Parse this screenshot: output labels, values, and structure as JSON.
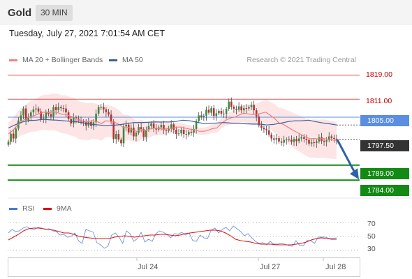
{
  "header": {
    "instrument": "Gold",
    "timeframe": "30 MIN"
  },
  "datetime": "Tuesday, July 27, 2021 7:01:54 AM CET",
  "legend": {
    "ma20_bb": "MA 20 + Bollinger Bands",
    "ma50": "MA 50",
    "credit": "Research © 2021 Trading Central",
    "rsi": "RSI",
    "rsi_ma": "9MA"
  },
  "colors": {
    "resistance": "#e03030",
    "support": "#138a13",
    "pivot": "#5b8de0",
    "current": "#333333",
    "ma20": "#f28080",
    "ma50": "#3a5fa0",
    "bollinger_fill": "#fde0e0",
    "arrow": "#2e62a6",
    "rsi": "#4a78d8",
    "rsi_ma": "#e01010"
  },
  "chart_data": {
    "type": "line",
    "title": "Gold 30 MIN",
    "price_axis": {
      "ylim": [
        1778,
        1822
      ],
      "levels": [
        {
          "value": 1819.0,
          "label": "1819.00",
          "kind": "resistance"
        },
        {
          "value": 1811.0,
          "label": "1811.00",
          "kind": "resistance"
        },
        {
          "value": 1805.0,
          "label": "1805.00",
          "kind": "pivot"
        },
        {
          "value": 1797.5,
          "label": "1797.50",
          "kind": "current"
        },
        {
          "value": 1789.0,
          "label": "1789.00",
          "kind": "support"
        },
        {
          "value": 1784.0,
          "label": "1784.00",
          "kind": "support"
        }
      ]
    },
    "x_ticks": [
      "Jul 24",
      "Jul 27",
      "Jul 28"
    ],
    "close_series": [
      1796.8,
      1799.5,
      1797.9,
      1801.2,
      1803.9,
      1805.6,
      1807.9,
      1804.0,
      1804.9,
      1806.6,
      1807.6,
      1807.9,
      1806.9,
      1804.4,
      1804.6,
      1806.8,
      1806.0,
      1805.2,
      1808.4,
      1807.4,
      1808.4,
      1808.0,
      1807.9,
      1806.6,
      1804.4,
      1802.9,
      1804.9,
      1804.5,
      1803.8,
      1803.6,
      1803.3,
      1802.2,
      1803.4,
      1802.1,
      1803.3,
      1806.2,
      1808.4,
      1808.4,
      1807.6,
      1806.7,
      1805.9,
      1803.6,
      1797.7,
      1799.4,
      1797.5,
      1796.3,
      1801.9,
      1802.5,
      1799.9,
      1801.5,
      1798.6,
      1799.8,
      1801.7,
      1801.0,
      1798.4,
      1800.8,
      1802.0,
      1802.9,
      1801.3,
      1800.9,
      1801.6,
      1802.4,
      1800.7,
      1800.5,
      1801.1,
      1802.6,
      1800.8,
      1799.4,
      1799.6,
      1800.8,
      1799.4,
      1799.2,
      1800.1,
      1799.8,
      1801.1,
      1803.7,
      1805.6,
      1805.1,
      1805.5,
      1807.5,
      1806.5,
      1808.0,
      1805.4,
      1806.3,
      1807.1,
      1806.2,
      1806.1,
      1807.8,
      1810.2,
      1808.5,
      1807.8,
      1807.5,
      1808.6,
      1807.3,
      1808.0,
      1807.9,
      1808.4,
      1809.1,
      1807.3,
      1805.2,
      1802.3,
      1801.5,
      1801.0,
      1800.6,
      1799.2,
      1797.9,
      1797.5,
      1798.0,
      1796.9,
      1796.5,
      1797.4,
      1797.6,
      1797.5,
      1796.8,
      1797.7,
      1797.0,
      1797.9,
      1798.3,
      1797.8,
      1797.4,
      1796.2,
      1796.6,
      1796.4,
      1796.9,
      1798.3,
      1797.1,
      1796.8,
      1797.3,
      1798.6,
      1798.1,
      1797.8,
      1797.5
    ],
    "ma20_series": [
      1799.4,
      1800.6,
      1802.3,
      1803.7,
      1804.4,
      1805.3,
      1805.6,
      1806.2,
      1806.7,
      1806.5,
      1806.8,
      1806.6,
      1806.0,
      1805.9,
      1805.3,
      1804.9,
      1803.9,
      1803.7,
      1803.5,
      1803.8,
      1803.5,
      1802.9,
      1803.8,
      1803.6,
      1803.3,
      1802.6,
      1801.4,
      1801.6,
      1800.8,
      1800.2,
      1800.9,
      1800.5,
      1801.1,
      1801.4,
      1801.2,
      1801.0,
      1801.3,
      1801.3,
      1801.7,
      1801.7,
      1801.3,
      1801.0,
      1800.8,
      1800.3,
      1800.3,
      1800.6,
      1801.2,
      1801.4,
      1802.9,
      1804.0,
      1804.7,
      1805.0,
      1805.7,
      1806.3,
      1806.1,
      1805.9,
      1806.0,
      1806.3,
      1806.7,
      1805.7,
      1804.6,
      1803.1,
      1802.6,
      1801.7,
      1800.8,
      1800.0,
      1799.2,
      1798.4,
      1797.8,
      1797.9,
      1797.7,
      1797.9,
      1797.6,
      1797.4,
      1797.3
    ],
    "ma50_series": [
      1801.4,
      1802.5,
      1803.4,
      1803.9,
      1804.0,
      1804.3,
      1804.1,
      1804.0,
      1803.8,
      1803.6,
      1803.4,
      1803.0,
      1802.6,
      1802.4,
      1802.2,
      1802.3,
      1802.5,
      1802.9,
      1803.2,
      1803.2,
      1803.3,
      1803.4,
      1803.4,
      1803.4,
      1803.6,
      1804.0,
      1803.8,
      1803.3,
      1802.9,
      1802.9,
      1803.1,
      1803.2,
      1803.0,
      1803.0,
      1802.8,
      1802.7,
      1802.7,
      1802.4,
      1802.6,
      1803.0,
      1803.5,
      1803.8,
      1803.8,
      1804.0,
      1803.5,
      1803.1,
      1802.8,
      1802.4
    ],
    "rsi": {
      "ylim": [
        25,
        75
      ],
      "ticks": [
        "70",
        "50",
        "30"
      ],
      "rsi_series": [
        55,
        60,
        57,
        58,
        62,
        64,
        61,
        60,
        63,
        62,
        60,
        61,
        58,
        57,
        52,
        53,
        49,
        50,
        55,
        44,
        40,
        60,
        58,
        56,
        41,
        38,
        33,
        36,
        52,
        55,
        49,
        40,
        58,
        54,
        43,
        47,
        56,
        42,
        46,
        43,
        54,
        58,
        56,
        53,
        48,
        54,
        53,
        56,
        52,
        55,
        44,
        43,
        52,
        48,
        47,
        59,
        62,
        55,
        60,
        63,
        58,
        65,
        61,
        57,
        51,
        54,
        48,
        43,
        40,
        41,
        38,
        43,
        39,
        39,
        40,
        39,
        37,
        36,
        44,
        37,
        37,
        44,
        44,
        40,
        49,
        49,
        49,
        47,
        47,
        48
      ],
      "ma_series": [
        45,
        49,
        53,
        58,
        61,
        62,
        62,
        61,
        60,
        59,
        57,
        55,
        55,
        53,
        50,
        49,
        48,
        47,
        47,
        47,
        47,
        49,
        50,
        51,
        50,
        49,
        50,
        51,
        52,
        52,
        53,
        53,
        52,
        51,
        52,
        54,
        55,
        56,
        57,
        58,
        59,
        59,
        58,
        55,
        51,
        46,
        44,
        43,
        42,
        40,
        39,
        39,
        39,
        38,
        38,
        38,
        38,
        39,
        40,
        42,
        45,
        47,
        48,
        47,
        46,
        46
      ]
    }
  }
}
